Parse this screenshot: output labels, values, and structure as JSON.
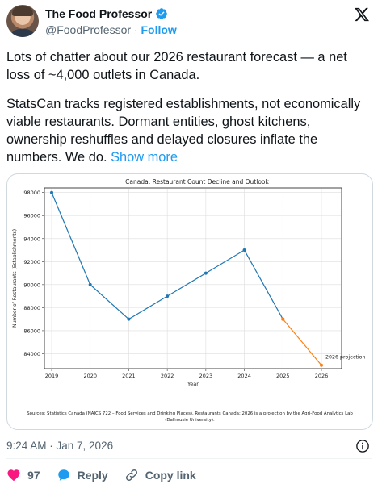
{
  "author": {
    "name": "The Food Professor",
    "handle": "@FoodProfessor",
    "separator": "·",
    "follow_label": "Follow"
  },
  "tweet": {
    "paragraph1": "Lots of chatter about our 2026 restaurant forecast — a net loss of ~4,000 outlets in Canada.",
    "paragraph2": "StatsCan tracks registered establishments, not economically viable restaurants. Dormant entities, ghost kitchens, ownership reshuffles and delayed closures inflate the numbers. We do.",
    "show_more": "Show more"
  },
  "chart_data": {
    "type": "line",
    "title": "Canada: Restaurant Count Decline and Outlook",
    "xlabel": "Year",
    "ylabel": "Number of Restaurants (Establishments)",
    "x": [
      "2019",
      "2020",
      "2021",
      "2022",
      "2023",
      "2024",
      "2025",
      "2026"
    ],
    "y_ticks": [
      "84000",
      "86000",
      "88000",
      "90000",
      "92000",
      "94000",
      "96000",
      "98000"
    ],
    "ylim": [
      82700,
      98400
    ],
    "grid": true,
    "series": [
      {
        "x": [
          "2019",
          "2020",
          "2021",
          "2022",
          "2023",
          "2024",
          "2025"
        ],
        "values": [
          98000,
          90000,
          87000,
          89000,
          91000,
          93000,
          87000
        ],
        "color": "#1f77b4"
      },
      {
        "x": [
          "2025",
          "2026"
        ],
        "values": [
          87000,
          83000
        ],
        "color": "#ff7f0e"
      }
    ],
    "annotation": "2026 projection",
    "source": "Sources: Statistics Canada (NAICS 722 – Food Services and Drinking Places), Restaurants Canada; 2026 is a projection by the Agri-Food Analytics Lab (Dalhousie University)."
  },
  "meta": {
    "timestamp": "9:24 AM · Jan 7, 2026"
  },
  "actions": {
    "likes": "97",
    "reply_label": "Reply",
    "copy_link_label": "Copy link"
  },
  "colors": {
    "accent": "#1d9bf0",
    "like": "#f91880",
    "muted": "#536471"
  }
}
